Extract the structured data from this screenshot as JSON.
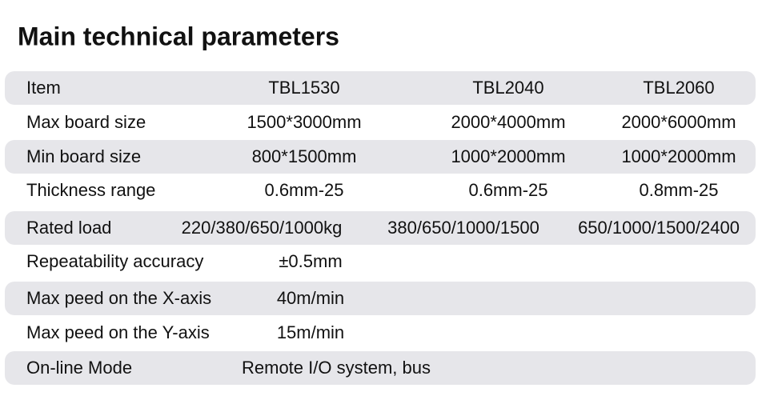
{
  "header": {
    "title": "Main technical parameters"
  },
  "table": {
    "rows": [
      [
        "Item",
        "TBL1530",
        "TBL2040",
        "TBL2060"
      ],
      [
        "Max board size",
        "1500*3000mm",
        "2000*4000mm",
        "2000*6000mm"
      ],
      [
        "Min board size",
        "800*1500mm",
        "1000*2000mm",
        "1000*2000mm"
      ],
      [
        "Thickness range",
        "0.6mm-25",
        "0.6mm-25",
        "0.8mm-25"
      ],
      [
        "Rated load",
        "220/380/650/1000kg",
        "380/650/1000/1500",
        "650/1000/1500/2400"
      ],
      [
        "Repeatability accuracy",
        "±0.5mm"
      ],
      [
        "Max peed on the X-axis",
        "40m/min"
      ],
      [
        "Max peed on the Y-axis",
        "15m/min"
      ],
      [
        "On-line Mode",
        "Remote I/O system, bus"
      ]
    ]
  }
}
